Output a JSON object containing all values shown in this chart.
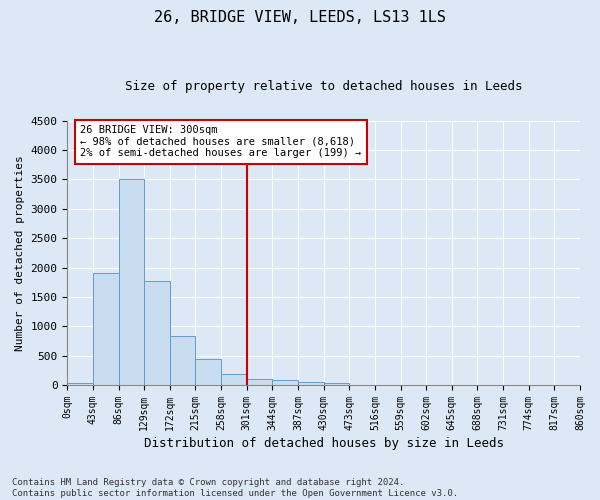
{
  "title": "26, BRIDGE VIEW, LEEDS, LS13 1LS",
  "subtitle": "Size of property relative to detached houses in Leeds",
  "xlabel": "Distribution of detached houses by size in Leeds",
  "ylabel": "Number of detached properties",
  "bin_labels": [
    "0sqm",
    "43sqm",
    "86sqm",
    "129sqm",
    "172sqm",
    "215sqm",
    "258sqm",
    "301sqm",
    "344sqm",
    "387sqm",
    "430sqm",
    "473sqm",
    "516sqm",
    "559sqm",
    "602sqm",
    "645sqm",
    "688sqm",
    "731sqm",
    "774sqm",
    "817sqm",
    "860sqm"
  ],
  "bar_values": [
    30,
    1900,
    3500,
    1775,
    840,
    450,
    190,
    100,
    80,
    55,
    30,
    0,
    0,
    0,
    0,
    0,
    0,
    0,
    0,
    0
  ],
  "bar_color": "#c8ddf0",
  "bar_edge_color": "#6699cc",
  "vline_x": 7.0,
  "vline_color": "#cc0000",
  "annotation_text": "26 BRIDGE VIEW: 300sqm\n← 98% of detached houses are smaller (8,618)\n2% of semi-detached houses are larger (199) →",
  "annotation_box_color": "#cc0000",
  "ylim": [
    0,
    4500
  ],
  "yticks": [
    0,
    500,
    1000,
    1500,
    2000,
    2500,
    3000,
    3500,
    4000,
    4500
  ],
  "footer_text": "Contains HM Land Registry data © Crown copyright and database right 2024.\nContains public sector information licensed under the Open Government Licence v3.0.",
  "bg_color": "#dce8f5",
  "plot_bg_color": "#dce8f5",
  "grid_color": "#b8cce0"
}
